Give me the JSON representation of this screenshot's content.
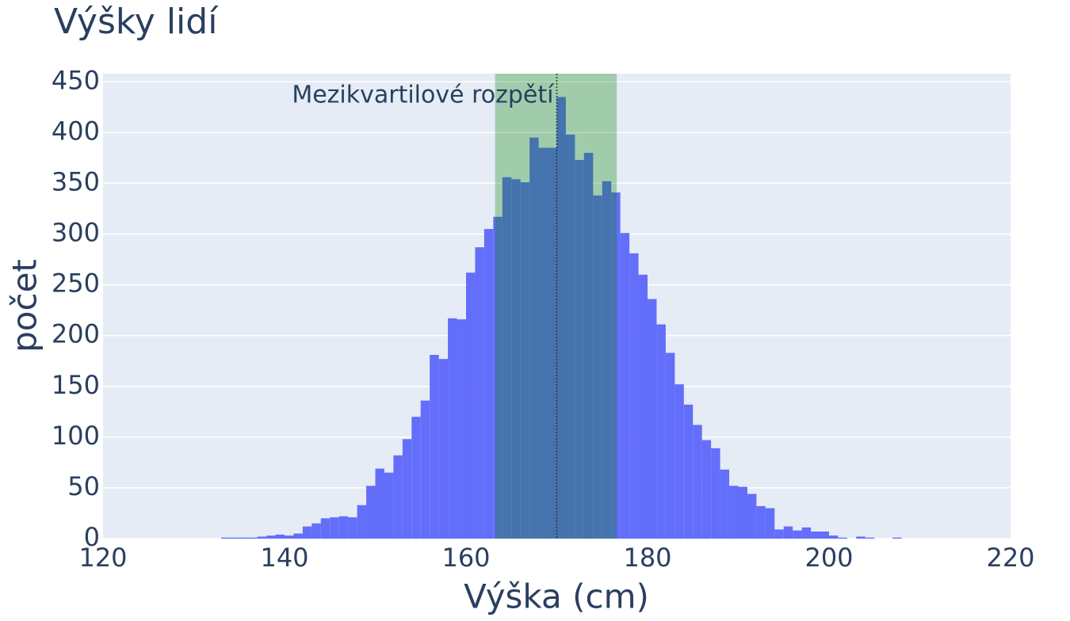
{
  "chart_data": {
    "type": "histogram",
    "title": "Výšky lidí",
    "x_label": "Výška (cm)",
    "y_label": "počet",
    "bins": [
      133,
      134,
      135,
      136,
      137,
      138,
      139,
      140,
      141,
      142,
      143,
      144,
      145,
      146,
      147,
      148,
      149,
      150,
      151,
      152,
      153,
      154,
      155,
      156,
      157,
      158,
      159,
      160,
      161,
      162,
      163,
      164,
      165,
      166,
      167,
      168,
      169,
      170,
      171,
      172,
      173,
      174,
      175,
      176,
      177,
      178,
      179,
      180,
      181,
      182,
      183,
      184,
      185,
      186,
      187,
      188,
      189,
      190,
      191,
      192,
      193,
      194,
      195,
      196,
      197,
      198,
      199,
      200,
      201,
      202,
      203,
      204,
      205,
      206,
      207,
      208
    ],
    "counts": [
      1,
      1,
      1,
      1,
      2,
      3,
      4,
      3,
      5,
      12,
      15,
      20,
      21,
      22,
      21,
      33,
      52,
      69,
      65,
      82,
      98,
      120,
      136,
      181,
      177,
      217,
      216,
      262,
      287,
      305,
      317,
      356,
      354,
      351,
      395,
      385,
      385,
      435,
      398,
      373,
      380,
      338,
      352,
      341,
      301,
      281,
      260,
      236,
      211,
      183,
      152,
      132,
      112,
      97,
      89,
      68,
      52,
      51,
      44,
      32,
      30,
      9,
      12,
      8,
      11,
      7,
      7,
      3,
      1,
      0,
      2,
      1,
      0,
      0,
      1
    ],
    "color": "#636efa",
    "xlim": [
      120,
      220
    ],
    "xticks": [
      120,
      140,
      160,
      180,
      200,
      220
    ],
    "ylim": [
      0,
      458
    ],
    "yticks": [
      0,
      50,
      100,
      150,
      200,
      250,
      300,
      350,
      400,
      450
    ],
    "grid": true,
    "iqr": {
      "x0": 163.2,
      "x1": 176.6,
      "label": "Mezikvartilové rozpětí",
      "color": "#008000"
    },
    "median": 170
  }
}
